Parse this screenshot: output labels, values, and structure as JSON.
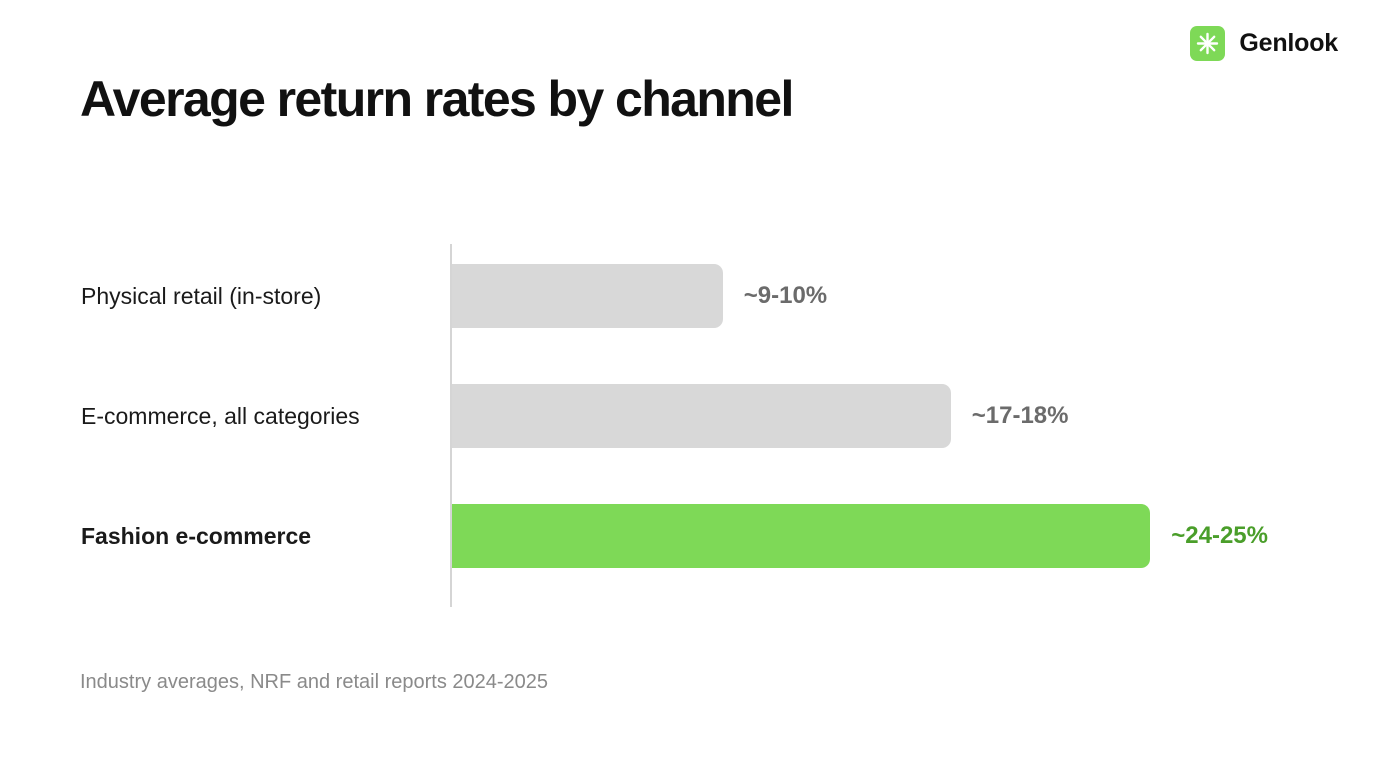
{
  "brand": {
    "name": "Genlook",
    "logo_icon": "sparkle-icon",
    "logo_color": "#7ed957"
  },
  "chart_data": {
    "type": "bar",
    "orientation": "horizontal",
    "title": "Average return rates by channel",
    "categories": [
      "Physical retail (in-store)",
      "E-commerce, all categories",
      "Fashion e-commerce"
    ],
    "value_labels": [
      "~9-10%",
      "~17-18%",
      "~24-25%"
    ],
    "values": [
      9.5,
      17.5,
      24.5
    ],
    "unit": "%",
    "bar_colors": [
      "#d8d8d8",
      "#d8d8d8",
      "#7ed957"
    ],
    "value_label_colors": [
      "#6b6b6b",
      "#6b6b6b",
      "#4a9e2a"
    ],
    "highlight_index": 2,
    "grid": false,
    "legend": "none",
    "footnote": "Industry averages, NRF and retail reports 2024-2025"
  }
}
